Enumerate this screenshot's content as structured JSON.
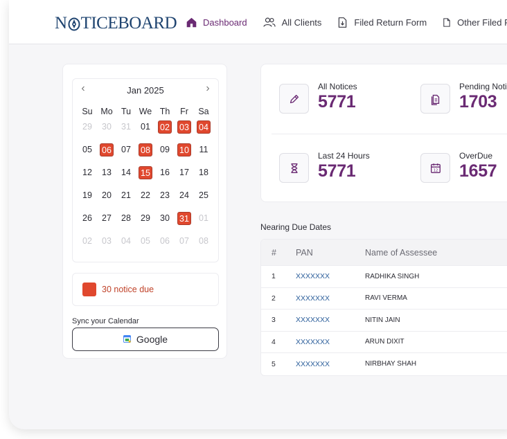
{
  "brand": {
    "logo_text_left": "N",
    "logo_text_right": "TICEBOARD"
  },
  "nav": [
    {
      "label": "Dashboard",
      "icon": "home-icon",
      "active": true
    },
    {
      "label": "All Clients",
      "icon": "users-icon",
      "active": false
    },
    {
      "label": "Filed Return Form",
      "icon": "download-doc-icon",
      "active": false
    },
    {
      "label": "Other Filed Form",
      "icon": "document-icon",
      "active": false
    }
  ],
  "calendar": {
    "month_label": "Jan 2025",
    "prev_icon": "chevron-left-icon",
    "next_icon": "chevron-right-icon",
    "weekdays": [
      "Su",
      "Mo",
      "Tu",
      "We",
      "Th",
      "Fr",
      "Sa"
    ],
    "weeks": [
      [
        {
          "d": "29",
          "m": true
        },
        {
          "d": "30",
          "m": true
        },
        {
          "d": "31",
          "m": true
        },
        {
          "d": "01"
        },
        {
          "d": "02",
          "due": true
        },
        {
          "d": "03",
          "due": true
        },
        {
          "d": "04",
          "due": true
        }
      ],
      [
        {
          "d": "05"
        },
        {
          "d": "06",
          "due": true
        },
        {
          "d": "07"
        },
        {
          "d": "08",
          "due": true
        },
        {
          "d": "09"
        },
        {
          "d": "10",
          "due": true
        },
        {
          "d": "11"
        }
      ],
      [
        {
          "d": "12"
        },
        {
          "d": "13"
        },
        {
          "d": "14"
        },
        {
          "d": "15",
          "due": true
        },
        {
          "d": "16"
        },
        {
          "d": "17"
        },
        {
          "d": "18"
        }
      ],
      [
        {
          "d": "19"
        },
        {
          "d": "20"
        },
        {
          "d": "21"
        },
        {
          "d": "22"
        },
        {
          "d": "23"
        },
        {
          "d": "24"
        },
        {
          "d": "25"
        }
      ],
      [
        {
          "d": "26"
        },
        {
          "d": "27"
        },
        {
          "d": "28"
        },
        {
          "d": "29"
        },
        {
          "d": "30"
        },
        {
          "d": "31",
          "due": true
        },
        {
          "d": "01",
          "m": true
        }
      ],
      [
        {
          "d": "02",
          "m": true
        },
        {
          "d": "03",
          "m": true
        },
        {
          "d": "04",
          "m": true
        },
        {
          "d": "05",
          "m": true
        },
        {
          "d": "06",
          "m": true
        },
        {
          "d": "07",
          "m": true
        },
        {
          "d": "08",
          "m": true
        }
      ]
    ],
    "due_summary": "30 notice due",
    "due_color": "#e0482e",
    "sync_label": "Sync your Calendar",
    "google_button": "Google"
  },
  "stats": [
    {
      "label": "All Notices",
      "value": "5771",
      "icon": "pencil-icon"
    },
    {
      "label": "Pending Notices",
      "value": "1703",
      "icon": "documents-icon"
    },
    {
      "label": "Last 24 Hours",
      "value": "5771",
      "icon": "hourglass-icon"
    },
    {
      "label": "OverDue",
      "value": "1657",
      "icon": "calendar-icon"
    }
  ],
  "table": {
    "title": "Nearing Due Dates",
    "headers": {
      "idx": "#",
      "pan": "PAN",
      "name": "Name of Assessee"
    },
    "rows": [
      {
        "idx": "1",
        "pan": "XXXXXXX",
        "name": "RADHIKA SINGH"
      },
      {
        "idx": "2",
        "pan": "XXXXXXX",
        "name": "RAVI VERMA"
      },
      {
        "idx": "3",
        "pan": "XXXXXXX",
        "name": "NITIN JAIN"
      },
      {
        "idx": "4",
        "pan": "XXXXXXX",
        "name": "ARUN DIXIT"
      },
      {
        "idx": "5",
        "pan": "XXXXXXX",
        "name": "NIRBHAY SHAH"
      }
    ]
  },
  "colors": {
    "accent": "#6a2a73",
    "brand": "#1f4470",
    "due": "#e0482e",
    "link": "#2a5d9a"
  }
}
